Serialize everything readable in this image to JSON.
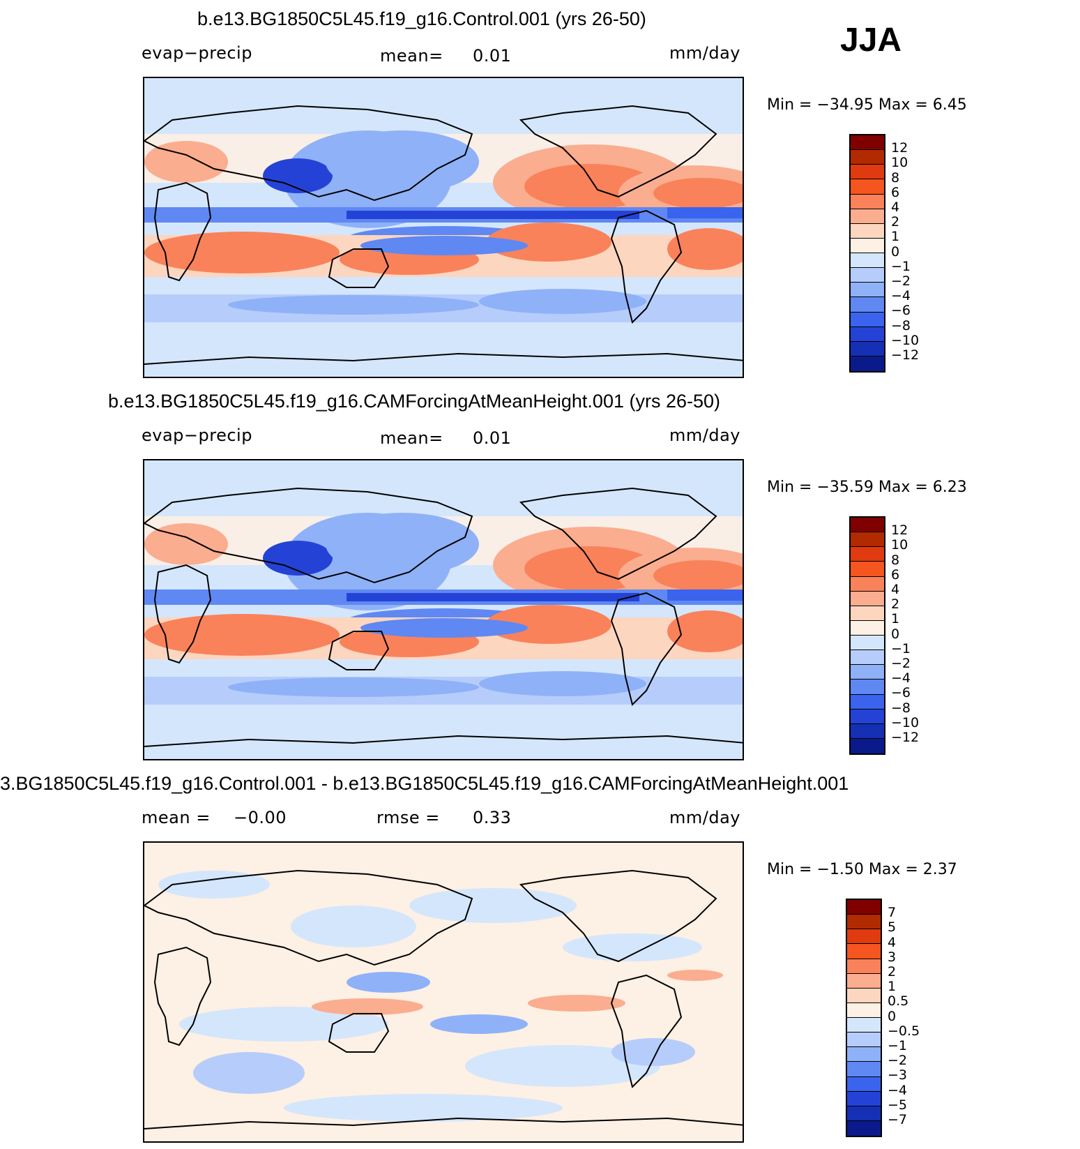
{
  "season": "JJA",
  "panels": [
    {
      "title": "b.e13.BG1850C5L45.f19_g16.Control.001 (yrs 26-50)",
      "left_label": "evap−precip",
      "mid_label": "mean=",
      "mid_value": "0.01",
      "right_label": "",
      "right_value": "",
      "units": "mm/day",
      "min_text": "Min  =  −34.95  Max  =     6.45",
      "colorbar_labels": [
        "12",
        "10",
        "8",
        "6",
        "4",
        "2",
        "1",
        "0",
        "−1",
        "−2",
        "−4",
        "−6",
        "−8",
        "−10",
        "−12"
      ]
    },
    {
      "title": "b.e13.BG1850C5L45.f19_g16.CAMForcingAtMeanHeight.001 (yrs 26-50)",
      "left_label": "evap−precip",
      "mid_label": "mean=",
      "mid_value": "0.01",
      "right_label": "",
      "right_value": "",
      "units": "mm/day",
      "min_text": "Min  =  −35.59  Max  =     6.23",
      "colorbar_labels": [
        "12",
        "10",
        "8",
        "6",
        "4",
        "2",
        "1",
        "0",
        "−1",
        "−2",
        "−4",
        "−6",
        "−8",
        "−10",
        "−12"
      ]
    },
    {
      "title": "3.BG1850C5L45.f19_g16.Control.001 - b.e13.BG1850C5L45.f19_g16.CAMForcingAtMeanHeight.001",
      "left_label": "mean  =",
      "mid_label": "−0.00",
      "mid_value": "",
      "right_label": "rmse  =",
      "right_value": "0.33",
      "units": "mm/day",
      "min_text": "Min  =     −1.50  Max  =     2.37",
      "colorbar_labels": [
        "7",
        "5",
        "4",
        "3",
        "2",
        "1",
        "0.5",
        "0",
        "−0.5",
        "−1",
        "−2",
        "−3",
        "−4",
        "−5",
        "−7"
      ]
    }
  ],
  "colors": {
    "scale": [
      "#800000",
      "#b22a00",
      "#e03b10",
      "#f5551f",
      "#f9825a",
      "#fbad8f",
      "#fdd6c0",
      "#fdf0e4",
      "#d4e6fc",
      "#b6cdfb",
      "#8fb1f8",
      "#5f88f3",
      "#3a63ee",
      "#2443d6",
      "#1530b4",
      "#0b1a8a"
    ],
    "land_outline": "#000000"
  }
}
